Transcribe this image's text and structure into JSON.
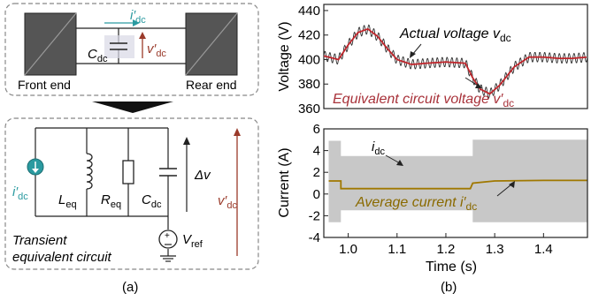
{
  "figure": {
    "panel_a": {
      "label": "(a)",
      "top_box": {
        "front_label": "Front end",
        "rear_label": "Rear end",
        "cap_label": "C",
        "cap_sub": "dc",
        "current_label": "i′",
        "current_sub": "dc",
        "voltage_label": "v′",
        "voltage_sub": "dc"
      },
      "bottom_box": {
        "source_label": "i′",
        "source_sub": "dc",
        "L_label": "L",
        "L_sub": "eq",
        "R_label": "R",
        "R_sub": "eq",
        "C_label": "C",
        "C_sub": "dc",
        "dv_label": "Δv",
        "v_label": "v′",
        "v_sub": "dc",
        "vref_label": "V",
        "vref_sub": "ref",
        "caption_line1": "Transient",
        "caption_line2": "equivalent circuit"
      }
    },
    "panel_b": {
      "label": "(b)"
    }
  },
  "chart_data": [
    {
      "type": "line",
      "ylabel": "Voltage (V)",
      "ylim": [
        360,
        445
      ],
      "yticks": [
        "360",
        "380",
        "400",
        "420",
        "440"
      ],
      "xlim": [
        0.95,
        1.49
      ],
      "grid": false,
      "annotations": [
        {
          "text": "Actual voltage v",
          "sub": "dc"
        },
        {
          "text": "Equivalent circuit voltage v′",
          "sub": "dc"
        }
      ],
      "colors": {
        "actual": "#303030",
        "equivalent": "#c0262c"
      },
      "series": [
        {
          "name": "Actual voltage vdc",
          "x": [
            0.95,
            0.98,
            1.0,
            1.02,
            1.04,
            1.06,
            1.08,
            1.1,
            1.13,
            1.16,
            1.2,
            1.24,
            1.255,
            1.27,
            1.29,
            1.31,
            1.34,
            1.37,
            1.4,
            1.43,
            1.46,
            1.49
          ],
          "y": [
            403,
            400,
            412,
            422,
            425,
            419,
            409,
            400,
            396,
            397,
            398,
            397,
            385,
            376,
            372,
            379,
            394,
            402,
            402,
            401,
            401,
            402
          ],
          "ripple_amplitude": 4
        },
        {
          "name": "Equivalent circuit voltage v′dc",
          "x": [
            0.95,
            0.98,
            1.0,
            1.02,
            1.04,
            1.06,
            1.08,
            1.1,
            1.13,
            1.16,
            1.2,
            1.24,
            1.255,
            1.27,
            1.29,
            1.31,
            1.34,
            1.37,
            1.4,
            1.43,
            1.46,
            1.49
          ],
          "y": [
            403,
            400,
            412,
            422,
            425,
            419,
            409,
            400,
            396,
            397,
            398,
            397,
            385,
            376,
            372,
            379,
            394,
            402,
            402,
            401,
            401,
            402
          ]
        }
      ]
    },
    {
      "type": "line",
      "ylabel": "Current (A)",
      "xlabel": "Time (s)",
      "ylim": [
        -4,
        6
      ],
      "xlim": [
        0.95,
        1.49
      ],
      "yticks": [
        "-4",
        "-2",
        "0",
        "2",
        "4",
        "6"
      ],
      "xticks": [
        "1.0",
        "1.1",
        "1.2",
        "1.3",
        "1.4"
      ],
      "grid": false,
      "annotations": [
        {
          "text": "i",
          "sub": "dc"
        },
        {
          "text": "Average current i′",
          "sub": "dc"
        }
      ],
      "colors": {
        "band": "#c8c8c8",
        "average": "#a07800"
      },
      "band": {
        "x": [
          0.96,
          0.985,
          0.985,
          1.255,
          1.255,
          1.49
        ],
        "upper": [
          4.9,
          4.9,
          3.5,
          3.5,
          5.0,
          5.0
        ],
        "lower": [
          -2.6,
          -2.6,
          -1.5,
          -1.5,
          -2.6,
          -2.6
        ]
      },
      "series": [
        {
          "name": "Average current i′dc",
          "x": [
            0.96,
            0.985,
            0.985,
            1.25,
            1.255,
            1.3,
            1.4,
            1.49
          ],
          "y": [
            1.2,
            1.2,
            0.5,
            0.5,
            1.0,
            1.2,
            1.25,
            1.25
          ]
        }
      ]
    }
  ]
}
